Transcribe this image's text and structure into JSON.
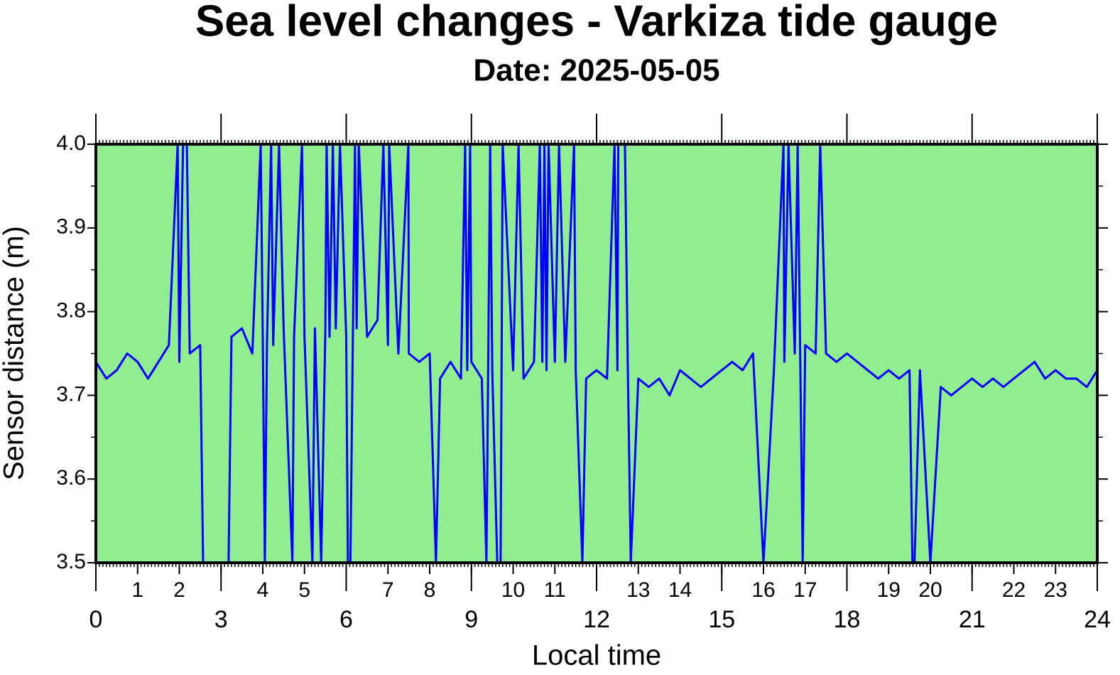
{
  "chart_data": {
    "type": "line",
    "title": "Sea level changes - Varkiza tide gauge",
    "subtitle": "Date: 2025-05-05",
    "x_label": "Local time",
    "y_label": "Sensor distance (m)",
    "xlim": [
      0,
      24
    ],
    "ylim": [
      3.5,
      4.0
    ],
    "xticks": [
      0,
      3,
      6,
      9,
      12,
      15,
      18,
      21,
      24
    ],
    "xminorticks": [
      1,
      2,
      4,
      5,
      7,
      8,
      10,
      11,
      13,
      14,
      16,
      17,
      19,
      20,
      22,
      23
    ],
    "yticks": [
      3.5,
      3.6,
      3.7,
      3.8,
      3.9,
      {
        "value": 4,
        "label": "4.0"
      }
    ],
    "background": "#90ee90",
    "series": [
      {
        "color": "#0000ff",
        "x": [
          0,
          0.25,
          0.5,
          0.75,
          1,
          1.25,
          1.5,
          1.75,
          1.96,
          2,
          2.09,
          2.18,
          2.25,
          2.5,
          2.57,
          2.75,
          3.18,
          3.25,
          3.5,
          3.75,
          3.95,
          4,
          4.05,
          4.1,
          4.2,
          4.25,
          4.39,
          4.5,
          4.71,
          4.75,
          4.94,
          5,
          5.19,
          5.25,
          5.4,
          5.5,
          5.53,
          5.6,
          5.68,
          5.75,
          5.85,
          6,
          6.04,
          6.1,
          6.21,
          6.25,
          6.3,
          6.5,
          6.75,
          6.89,
          7,
          7.03,
          7.25,
          7.49,
          7.5,
          7.75,
          8,
          8.15,
          8.25,
          8.5,
          8.75,
          8.85,
          8.9,
          8.97,
          9,
          9.25,
          9.36,
          9.45,
          9.5,
          9.62,
          9.7,
          9.75,
          10,
          10.13,
          10.25,
          10.5,
          10.64,
          10.7,
          10.75,
          10.8,
          10.85,
          11,
          11.1,
          11.25,
          11.46,
          11.5,
          11.66,
          11.75,
          12,
          12.25,
          12.43,
          12.5,
          12.52,
          12.6,
          12.68,
          12.75,
          12.82,
          13,
          13.25,
          13.5,
          13.75,
          14,
          14.25,
          14.5,
          14.75,
          15,
          15.25,
          15.5,
          15.75,
          16,
          16.25,
          16.48,
          16.5,
          16.6,
          16.75,
          16.82,
          16.94,
          17,
          17.25,
          17.36,
          17.5,
          17.75,
          18,
          18.25,
          18.5,
          18.75,
          19,
          19.25,
          19.5,
          19.57,
          19.62,
          19.75,
          20,
          20.25,
          20.5,
          20.75,
          21,
          21.25,
          21.5,
          21.75,
          22,
          22.25,
          22.5,
          22.75,
          23,
          23.25,
          23.5,
          23.75,
          24
        ],
        "values": [
          3.74,
          3.72,
          3.73,
          3.75,
          3.74,
          3.72,
          3.74,
          3.76,
          4.0,
          3.74,
          4.0,
          4.0,
          3.75,
          3.76,
          3.5,
          null,
          3.5,
          3.77,
          3.78,
          3.75,
          4.0,
          3.77,
          3.5,
          3.76,
          4.0,
          3.76,
          4.0,
          3.78,
          3.5,
          3.77,
          4.0,
          3.77,
          3.5,
          3.78,
          3.5,
          3.78,
          4.0,
          3.77,
          4.0,
          3.78,
          4.0,
          3.77,
          3.5,
          3.5,
          4.0,
          3.78,
          4.0,
          3.77,
          3.79,
          4.0,
          3.76,
          4.0,
          3.75,
          4.0,
          3.75,
          3.74,
          3.75,
          3.5,
          3.72,
          3.74,
          3.72,
          4.0,
          3.73,
          4.0,
          3.74,
          3.72,
          3.5,
          4.0,
          3.73,
          3.5,
          3.5,
          4.0,
          3.73,
          4.0,
          3.72,
          3.74,
          4.0,
          3.74,
          4.0,
          3.73,
          4.0,
          3.74,
          4.0,
          3.74,
          4.0,
          3.73,
          3.5,
          3.72,
          3.73,
          3.72,
          4.0,
          3.73,
          4.0,
          4.0,
          4.0,
          3.73,
          3.5,
          3.72,
          3.71,
          3.72,
          3.7,
          3.73,
          3.72,
          3.71,
          3.72,
          3.73,
          3.74,
          3.73,
          3.75,
          3.5,
          3.73,
          4.0,
          3.74,
          4.0,
          3.75,
          4.0,
          3.5,
          3.76,
          3.75,
          4.0,
          3.75,
          3.74,
          3.75,
          3.74,
          3.73,
          3.72,
          3.73,
          3.72,
          3.73,
          3.5,
          3.5,
          3.73,
          3.5,
          3.71,
          3.7,
          3.71,
          3.72,
          3.71,
          3.72,
          3.71,
          3.72,
          3.73,
          3.74,
          3.72,
          3.73,
          3.72,
          3.72,
          3.71,
          3.73
        ]
      }
    ]
  }
}
